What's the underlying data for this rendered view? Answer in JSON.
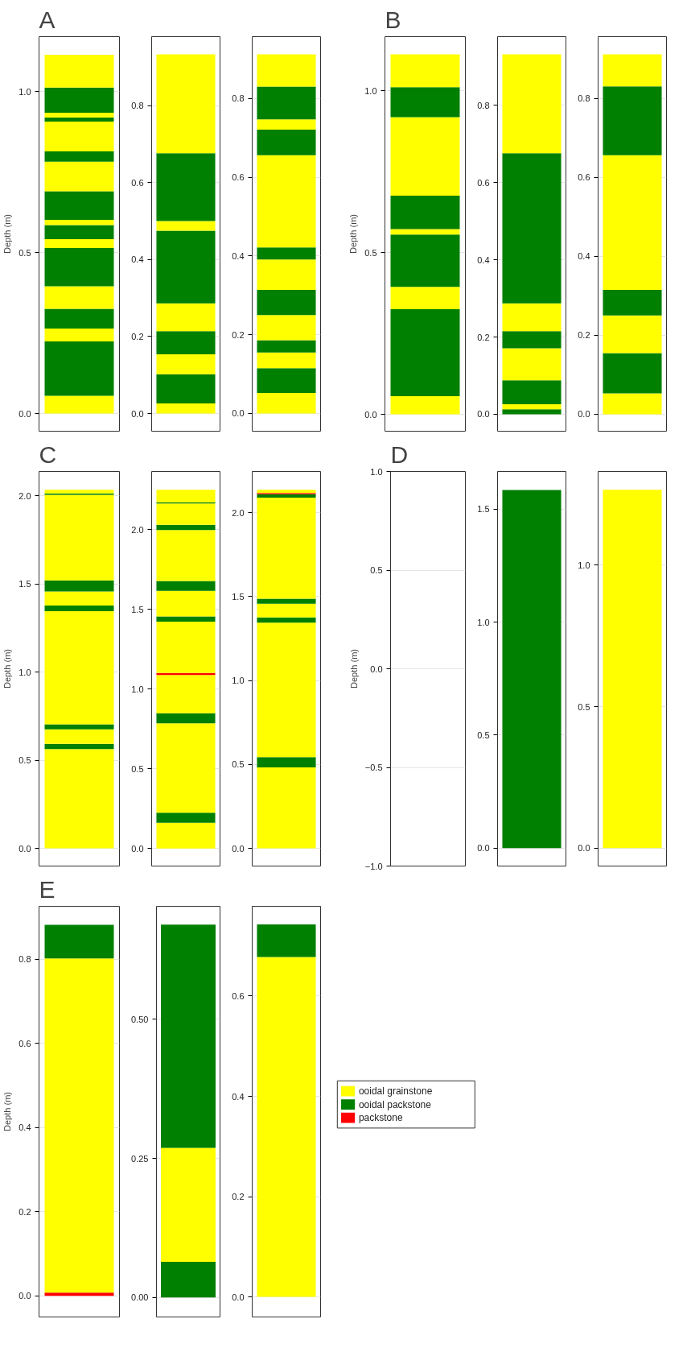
{
  "chart_data": [
    {
      "type": "bar",
      "title": "A",
      "ylabel": "Depth (m)",
      "stacked": true,
      "categories": [
        null
      ],
      "ylim": [
        -0.055,
        1.17
      ],
      "yticks": [
        {
          "value": 0,
          "label": "0.0"
        },
        {
          "value": 0.5,
          "label": "0.5"
        },
        {
          "value": 1,
          "label": "1.0"
        }
      ],
      "grid": "y",
      "tick_labels": "y",
      "series": [
        {
          "color": "#ffff00",
          "values": [
            0.055
          ]
        },
        {
          "color": "#008000",
          "values": [
            0.169
          ]
        },
        {
          "color": "#ffff00",
          "values": [
            0.04
          ]
        },
        {
          "color": "#008000",
          "values": [
            0.061
          ]
        },
        {
          "color": "#ffff00",
          "values": [
            0.07
          ]
        },
        {
          "color": "#008000",
          "values": [
            0.119
          ]
        },
        {
          "color": "#ffff00",
          "values": [
            0.027
          ]
        },
        {
          "color": "#008000",
          "values": [
            0.044
          ]
        },
        {
          "color": "#ffff00",
          "values": [
            0.016
          ]
        },
        {
          "color": "#008000",
          "values": [
            0.089
          ]
        },
        {
          "color": "#ffff00",
          "values": [
            0.092
          ]
        },
        {
          "color": "#008000",
          "values": [
            0.032
          ]
        },
        {
          "color": "#ffff00",
          "values": [
            0.092
          ]
        },
        {
          "color": "#008000",
          "values": [
            0.013
          ]
        },
        {
          "color": "#ffff00",
          "values": [
            0.015
          ]
        },
        {
          "color": "#008000",
          "values": [
            0.078
          ]
        },
        {
          "color": "#ffff00",
          "values": [
            0.102
          ]
        }
      ]
    },
    {
      "type": "bar",
      "stacked": true,
      "categories": [
        null
      ],
      "ylim": [
        -0.046,
        0.979
      ],
      "yticks": [
        {
          "value": 0,
          "label": "0.0"
        },
        {
          "value": 0.2,
          "label": "0.2"
        },
        {
          "value": 0.4,
          "label": "0.4"
        },
        {
          "value": 0.6,
          "label": "0.6"
        },
        {
          "value": 0.8,
          "label": "0.8"
        }
      ],
      "grid": "y",
      "tick_labels": "y",
      "series": [
        {
          "color": "#ffff00",
          "values": [
            0.026
          ]
        },
        {
          "color": "#008000",
          "values": [
            0.076
          ]
        },
        {
          "color": "#ffff00",
          "values": [
            0.052
          ]
        },
        {
          "color": "#008000",
          "values": [
            0.06
          ]
        },
        {
          "color": "#ffff00",
          "values": [
            0.072
          ]
        },
        {
          "color": "#008000",
          "values": [
            0.189
          ]
        },
        {
          "color": "#ffff00",
          "values": [
            0.025
          ]
        },
        {
          "color": "#008000",
          "values": [
            0.176
          ]
        },
        {
          "color": "#ffff00",
          "values": [
            0.257
          ]
        }
      ]
    },
    {
      "type": "bar",
      "stacked": true,
      "categories": [
        null
      ],
      "ylim": [
        -0.045,
        0.957
      ],
      "yticks": [
        {
          "value": 0,
          "label": "0.0"
        },
        {
          "value": 0.2,
          "label": "0.2"
        },
        {
          "value": 0.4,
          "label": "0.4"
        },
        {
          "value": 0.6,
          "label": "0.6"
        },
        {
          "value": 0.8,
          "label": "0.8"
        }
      ],
      "grid": "y",
      "tick_labels": "y",
      "series": [
        {
          "color": "#ffff00",
          "values": [
            0.052
          ]
        },
        {
          "color": "#008000",
          "values": [
            0.063
          ]
        },
        {
          "color": "#ffff00",
          "values": [
            0.04
          ]
        },
        {
          "color": "#008000",
          "values": [
            0.031
          ]
        },
        {
          "color": "#ffff00",
          "values": [
            0.064
          ]
        },
        {
          "color": "#008000",
          "values": [
            0.064
          ]
        },
        {
          "color": "#ffff00",
          "values": [
            0.077
          ]
        },
        {
          "color": "#008000",
          "values": [
            0.031
          ]
        },
        {
          "color": "#ffff00",
          "values": [
            0.234
          ]
        },
        {
          "color": "#008000",
          "values": [
            0.065
          ]
        },
        {
          "color": "#ffff00",
          "values": [
            0.026
          ]
        },
        {
          "color": "#008000",
          "values": [
            0.083
          ]
        },
        {
          "color": "#ffff00",
          "values": [
            0.082
          ]
        }
      ]
    },
    {
      "type": "bar",
      "title": "B",
      "ylabel": "Depth (m)",
      "stacked": true,
      "categories": [
        null
      ],
      "ylim": [
        -0.052,
        1.168
      ],
      "yticks": [
        {
          "value": 0,
          "label": "0.0"
        },
        {
          "value": 0.5,
          "label": "0.5"
        },
        {
          "value": 1,
          "label": "1.0"
        }
      ],
      "grid": "y",
      "tick_labels": "y",
      "series": [
        {
          "color": "#ffff00",
          "values": [
            0.056
          ]
        },
        {
          "color": "#008000",
          "values": [
            0.269
          ]
        },
        {
          "color": "#ffff00",
          "values": [
            0.069
          ]
        },
        {
          "color": "#008000",
          "values": [
            0.162
          ]
        },
        {
          "color": "#ffff00",
          "values": [
            0.017
          ]
        },
        {
          "color": "#008000",
          "values": [
            0.103
          ]
        },
        {
          "color": "#ffff00",
          "values": [
            0.243
          ]
        },
        {
          "color": "#008000",
          "values": [
            0.093
          ]
        },
        {
          "color": "#ffff00",
          "values": [
            0.101
          ]
        }
      ]
    },
    {
      "type": "bar",
      "stacked": true,
      "categories": [
        null
      ],
      "ylim": [
        -0.044,
        0.978
      ],
      "yticks": [
        {
          "value": 0,
          "label": "0.0"
        },
        {
          "value": 0.2,
          "label": "0.2"
        },
        {
          "value": 0.4,
          "label": "0.4"
        },
        {
          "value": 0.6,
          "label": "0.6"
        },
        {
          "value": 0.8,
          "label": "0.8"
        }
      ],
      "grid": "y",
      "tick_labels": "y",
      "series": [
        {
          "color": "#008000",
          "values": [
            0.013
          ]
        },
        {
          "color": "#ffff00",
          "values": [
            0.013
          ]
        },
        {
          "color": "#008000",
          "values": [
            0.062
          ]
        },
        {
          "color": "#ffff00",
          "values": [
            0.083
          ]
        },
        {
          "color": "#008000",
          "values": [
            0.044
          ]
        },
        {
          "color": "#ffff00",
          "values": [
            0.072
          ]
        },
        {
          "color": "#008000",
          "values": [
            0.389
          ]
        },
        {
          "color": "#ffff00",
          "values": [
            0.256
          ]
        }
      ]
    },
    {
      "type": "bar",
      "stacked": true,
      "categories": [
        null
      ],
      "ylim": [
        -0.043,
        0.956
      ],
      "yticks": [
        {
          "value": 0,
          "label": "0.0"
        },
        {
          "value": 0.2,
          "label": "0.2"
        },
        {
          "value": 0.4,
          "label": "0.4"
        },
        {
          "value": 0.6,
          "label": "0.6"
        },
        {
          "value": 0.8,
          "label": "0.8"
        }
      ],
      "grid": "y",
      "tick_labels": "y",
      "series": [
        {
          "color": "#ffff00",
          "values": [
            0.053
          ]
        },
        {
          "color": "#008000",
          "values": [
            0.102
          ]
        },
        {
          "color": "#ffff00",
          "values": [
            0.095
          ]
        },
        {
          "color": "#008000",
          "values": [
            0.065
          ]
        },
        {
          "color": "#ffff00",
          "values": [
            0.341
          ]
        },
        {
          "color": "#008000",
          "values": [
            0.174
          ]
        },
        {
          "color": "#ffff00",
          "values": [
            0.081
          ]
        }
      ]
    },
    {
      "type": "bar",
      "title": "C",
      "ylabel": "Depth (m)",
      "stacked": true,
      "categories": [
        null
      ],
      "ylim": [
        -0.1,
        2.138
      ],
      "yticks": [
        {
          "value": 0,
          "label": "0.0"
        },
        {
          "value": 0.5,
          "label": "0.5"
        },
        {
          "value": 1,
          "label": "1.0"
        },
        {
          "value": 1.5,
          "label": "1.5"
        },
        {
          "value": 2,
          "label": "2.0"
        }
      ],
      "grid": "y",
      "tick_labels": "y",
      "series": [
        {
          "color": "#ffff00",
          "values": [
            0.563
          ]
        },
        {
          "color": "#008000",
          "values": [
            0.03
          ]
        },
        {
          "color": "#ffff00",
          "values": [
            0.082
          ]
        },
        {
          "color": "#008000",
          "values": [
            0.029
          ]
        },
        {
          "color": "#ffff00",
          "values": [
            0.641
          ]
        },
        {
          "color": "#008000",
          "values": [
            0.033
          ]
        },
        {
          "color": "#ffff00",
          "values": [
            0.08
          ]
        },
        {
          "color": "#008000",
          "values": [
            0.062
          ]
        },
        {
          "color": "#ffff00",
          "values": [
            0.485
          ]
        },
        {
          "color": "#008000",
          "values": [
            0.008
          ]
        },
        {
          "color": "#ffff00",
          "values": [
            0.021
          ]
        }
      ]
    },
    {
      "type": "bar",
      "stacked": true,
      "categories": [
        null
      ],
      "ylim": [
        -0.11,
        2.364
      ],
      "yticks": [
        {
          "value": 0,
          "label": "0.0"
        },
        {
          "value": 0.5,
          "label": "0.5"
        },
        {
          "value": 1,
          "label": "1.0"
        },
        {
          "value": 1.5,
          "label": "1.5"
        },
        {
          "value": 2,
          "label": "2.0"
        }
      ],
      "grid": "y",
      "tick_labels": "y",
      "series": [
        {
          "color": "#ffff00",
          "values": [
            0.161
          ]
        },
        {
          "color": "#008000",
          "values": [
            0.063
          ]
        },
        {
          "color": "#ffff00",
          "values": [
            0.561
          ]
        },
        {
          "color": "#008000",
          "values": [
            0.063
          ]
        },
        {
          "color": "#ffff00",
          "values": [
            0.24
          ]
        },
        {
          "color": "#ff0000",
          "values": [
            0.013
          ]
        },
        {
          "color": "#ffff00",
          "values": [
            0.321
          ]
        },
        {
          "color": "#008000",
          "values": [
            0.033
          ]
        },
        {
          "color": "#ffff00",
          "values": [
            0.16
          ]
        },
        {
          "color": "#008000",
          "values": [
            0.062
          ]
        },
        {
          "color": "#ffff00",
          "values": [
            0.32
          ]
        },
        {
          "color": "#008000",
          "values": [
            0.033
          ]
        },
        {
          "color": "#ffff00",
          "values": [
            0.133
          ]
        },
        {
          "color": "#008000",
          "values": [
            0.008
          ]
        },
        {
          "color": "#ffff00",
          "values": [
            0.078
          ]
        }
      ]
    },
    {
      "type": "bar",
      "stacked": true,
      "categories": [
        null
      ],
      "ylim": [
        -0.105,
        2.245
      ],
      "yticks": [
        {
          "value": 0,
          "label": "0.0"
        },
        {
          "value": 0.5,
          "label": "0.5"
        },
        {
          "value": 1,
          "label": "1.0"
        },
        {
          "value": 1.5,
          "label": "1.5"
        },
        {
          "value": 2,
          "label": "2.0"
        }
      ],
      "grid": "y",
      "tick_labels": "y",
      "series": [
        {
          "color": "#ffff00",
          "values": [
            0.482
          ]
        },
        {
          "color": "#008000",
          "values": [
            0.062
          ]
        },
        {
          "color": "#ffff00",
          "values": [
            0.801
          ]
        },
        {
          "color": "#008000",
          "values": [
            0.031
          ]
        },
        {
          "color": "#ffff00",
          "values": [
            0.081
          ]
        },
        {
          "color": "#008000",
          "values": [
            0.03
          ]
        },
        {
          "color": "#ffff00",
          "values": [
            0.602
          ]
        },
        {
          "color": "#008000",
          "values": [
            0.02
          ]
        },
        {
          "color": "#ff0000",
          "values": [
            0.008
          ]
        },
        {
          "color": "#ffff00",
          "values": [
            0.019
          ]
        }
      ]
    },
    {
      "type": "bar",
      "title": "D",
      "ylabel": "Depth (m)",
      "stacked": true,
      "categories": [
        null
      ],
      "ylim": [
        -1,
        1
      ],
      "yticks": [
        {
          "value": -1,
          "label": "−1.0"
        },
        {
          "value": -0.5,
          "label": "−0.5"
        },
        {
          "value": 0,
          "label": "0.0"
        },
        {
          "value": 0.5,
          "label": "0.5"
        },
        {
          "value": 1,
          "label": "1.0"
        }
      ],
      "grid": "y",
      "tick_labels": "y"
    },
    {
      "type": "bar",
      "stacked": true,
      "categories": [
        null
      ],
      "ylim": [
        -0.079,
        1.666
      ],
      "yticks": [
        {
          "value": 0,
          "label": "0.0"
        },
        {
          "value": 0.5,
          "label": "0.5"
        },
        {
          "value": 1,
          "label": "1.0"
        },
        {
          "value": 1.5,
          "label": "1.5"
        }
      ],
      "grid": "y",
      "tick_labels": "y",
      "series": [
        {
          "color": "#008000",
          "values": [
            1.584
          ]
        }
      ]
    },
    {
      "type": "bar",
      "stacked": true,
      "categories": [
        null
      ],
      "ylim": [
        -0.063,
        1.331
      ],
      "yticks": [
        {
          "value": 0,
          "label": "0.0"
        },
        {
          "value": 0.5,
          "label": "0.5"
        },
        {
          "value": 1,
          "label": "1.0"
        }
      ],
      "grid": "y",
      "tick_labels": "y",
      "series": [
        {
          "color": "#ffff00",
          "values": [
            1.266
          ]
        }
      ]
    },
    {
      "type": "bar",
      "title": "E",
      "ylabel": "Depth (m)",
      "stacked": true,
      "categories": [
        null
      ],
      "ylim": [
        -0.05,
        0.926
      ],
      "yticks": [
        {
          "value": 0,
          "label": "0.0"
        },
        {
          "value": 0.2,
          "label": "0.2"
        },
        {
          "value": 0.4,
          "label": "0.4"
        },
        {
          "value": 0.6,
          "label": "0.6"
        },
        {
          "value": 0.8,
          "label": "0.8"
        }
      ],
      "grid": "y",
      "tick_labels": "y",
      "series": [
        {
          "color": "#ff0000",
          "values": [
            0.008
          ]
        },
        {
          "color": "#ffff00",
          "values": [
            0.794
          ]
        },
        {
          "color": "#008000",
          "values": [
            0.08
          ]
        }
      ]
    },
    {
      "type": "bar",
      "stacked": true,
      "categories": [
        null
      ],
      "ylim": [
        -0.035,
        0.703
      ],
      "yticks": [
        {
          "value": 0,
          "label": "0.00"
        },
        {
          "value": 0.25,
          "label": "0.25"
        },
        {
          "value": 0.5,
          "label": "0.50"
        }
      ],
      "grid": "y",
      "tick_labels": "y",
      "series": [
        {
          "color": "#008000",
          "values": [
            0.064
          ]
        },
        {
          "color": "#ffff00",
          "values": [
            0.205
          ]
        },
        {
          "color": "#008000",
          "values": [
            0.401
          ]
        }
      ]
    },
    {
      "type": "bar",
      "stacked": true,
      "categories": [
        null
      ],
      "ylim": [
        -0.04,
        0.779
      ],
      "yticks": [
        {
          "value": 0,
          "label": "0.0"
        },
        {
          "value": 0.2,
          "label": "0.2"
        },
        {
          "value": 0.4,
          "label": "0.4"
        },
        {
          "value": 0.6,
          "label": "0.6"
        }
      ],
      "grid": "y",
      "tick_labels": "y",
      "series": [
        {
          "color": "#ffff00",
          "values": [
            0.678
          ]
        },
        {
          "color": "#008000",
          "values": [
            0.065
          ]
        }
      ]
    },
    {
      "type": "other",
      "categories": [
        "ooidal grainstone",
        "ooidal packstone",
        "packstone"
      ],
      "colors": [
        "#ffff00",
        "#008000",
        "#ff0000"
      ]
    }
  ]
}
